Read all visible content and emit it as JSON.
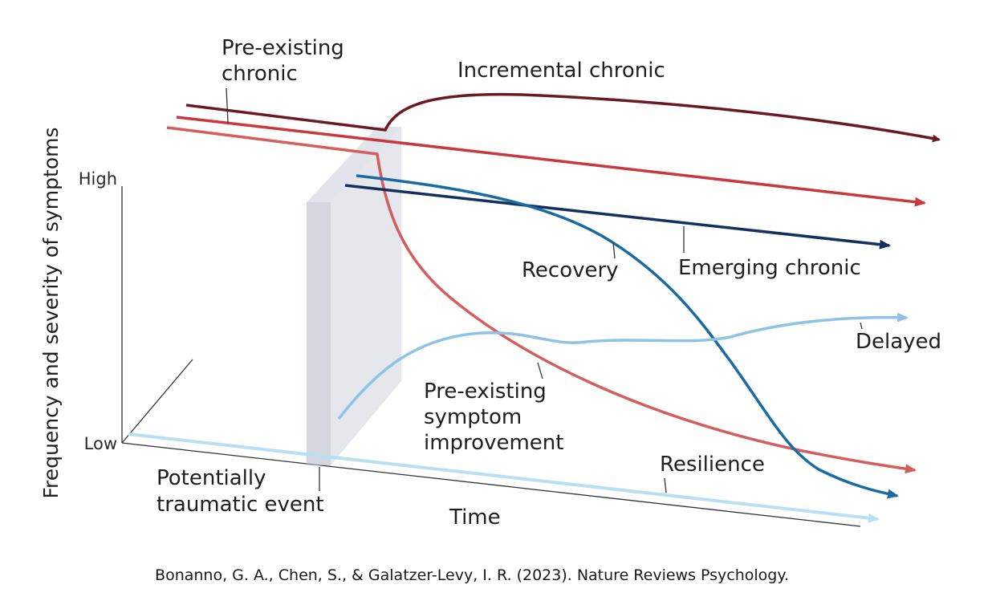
{
  "figure": {
    "y_axis_label": "Frequency and severity of symptoms",
    "y_high": "High",
    "y_low": "Low",
    "x_axis_label": "Time",
    "event_label_line1": "Potentially",
    "event_label_line2": "traumatic event",
    "trajectories": {
      "pre_existing_chronic": {
        "line1": "Pre-existing",
        "line2": "chronic",
        "color": "#c8393f"
      },
      "incremental_chronic": {
        "label": "Incremental chronic",
        "color": "#6b1a22"
      },
      "recovery": {
        "label": "Recovery",
        "color": "#1a6aa3"
      },
      "emerging_chronic": {
        "label": "Emerging chronic",
        "color": "#14305e"
      },
      "delayed": {
        "label": "Delayed",
        "color": "#8ec3e6"
      },
      "pre_existing_improvement": {
        "line1": "Pre-existing",
        "line2": "symptom",
        "line3": "improvement",
        "color": "#d45d5d"
      },
      "resilience": {
        "label": "Resilience",
        "color": "#b9dff2"
      }
    }
  },
  "caption": "Bonanno, G. A., Chen, S., & Galatzer-Levy, I. R. (2023). Nature Reviews Psychology."
}
